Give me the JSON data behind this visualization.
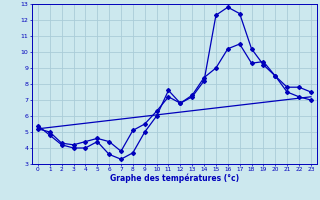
{
  "xlabel": "Graphe des températures (°c)",
  "bg_color": "#cce8ee",
  "grid_color": "#aaccd8",
  "line_color": "#0000bb",
  "xlim": [
    -0.5,
    23.5
  ],
  "ylim": [
    3,
    13
  ],
  "xticks": [
    0,
    1,
    2,
    3,
    4,
    5,
    6,
    7,
    8,
    9,
    10,
    11,
    12,
    13,
    14,
    15,
    16,
    17,
    18,
    19,
    20,
    21,
    22,
    23
  ],
  "yticks": [
    3,
    4,
    5,
    6,
    7,
    8,
    9,
    10,
    11,
    12,
    13
  ],
  "line1_x": [
    0,
    1,
    2,
    3,
    4,
    5,
    6,
    7,
    8,
    9,
    10,
    11,
    12,
    13,
    14,
    15,
    16,
    17,
    18,
    19,
    20,
    21,
    22,
    23
  ],
  "line1_y": [
    5.4,
    4.8,
    4.2,
    4.0,
    4.0,
    4.4,
    3.6,
    3.3,
    3.7,
    5.0,
    6.0,
    7.6,
    6.8,
    7.2,
    8.2,
    12.3,
    12.8,
    12.4,
    10.2,
    9.2,
    8.5,
    7.5,
    7.2,
    7.0
  ],
  "line2_x": [
    0,
    1,
    2,
    3,
    4,
    5,
    6,
    7,
    8,
    9,
    10,
    11,
    12,
    13,
    14,
    15,
    16,
    17,
    18,
    19,
    20,
    21,
    22,
    23
  ],
  "line2_y": [
    5.2,
    5.0,
    4.3,
    4.2,
    4.4,
    4.6,
    4.4,
    3.8,
    5.1,
    5.5,
    6.3,
    7.2,
    6.8,
    7.3,
    8.4,
    9.0,
    10.2,
    10.5,
    9.3,
    9.4,
    8.5,
    7.8,
    7.8,
    7.5
  ],
  "line3_x": [
    0,
    23
  ],
  "line3_y": [
    5.2,
    7.2
  ]
}
